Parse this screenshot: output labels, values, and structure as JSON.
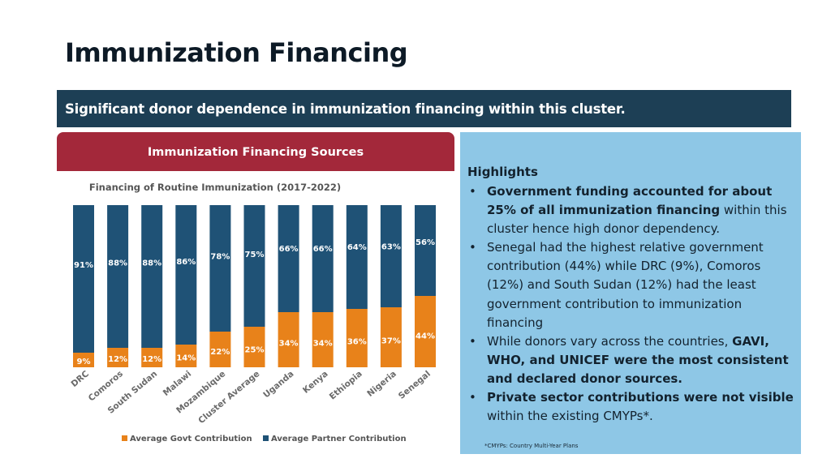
{
  "page": {
    "title": "Immunization Financing",
    "banner": "Significant donor dependence in immunization financing within this cluster."
  },
  "chart_panel": {
    "header": "Immunization Financing Sources"
  },
  "chart_data": {
    "type": "bar",
    "stacked": true,
    "title": "Financing of Routine Immunization (2017-2022)",
    "categories": [
      "DRC",
      "Comoros",
      "South Sudan",
      "Malawi",
      "Mozambique",
      "Cluster Average",
      "Uganda",
      "Kenya",
      "Ethiopia",
      "Nigeria",
      "Senegal"
    ],
    "series": [
      {
        "name": "Average Govt Contribution",
        "color": "#e8821a",
        "values": [
          9,
          12,
          12,
          14,
          22,
          25,
          34,
          34,
          36,
          37,
          44
        ],
        "labels": [
          "9%",
          "12%",
          "12%",
          "14%",
          "22%",
          "25%",
          "34%",
          "34%",
          "36%",
          "37%",
          "44%"
        ]
      },
      {
        "name": "Average Partner Contribution",
        "color": "#1f5276",
        "values": [
          91,
          88,
          88,
          86,
          78,
          75,
          66,
          66,
          64,
          63,
          56
        ],
        "labels": [
          "91%",
          "88%",
          "88%",
          "86%",
          "78%",
          "75%",
          "66%",
          "66%",
          "64%",
          "63%",
          "56%"
        ]
      }
    ],
    "ylim": [
      0,
      100
    ],
    "grid": false,
    "legend": "bottom"
  },
  "highlights": {
    "title": "Highlights",
    "bullets": [
      [
        {
          "t": "Government funding accounted for about 25% of all immunization financing",
          "b": true
        },
        {
          "t": " within this cluster hence  high donor dependency.",
          "b": false
        }
      ],
      [
        {
          "t": "Senegal had the highest relative government contribution (44%) while DRC (9%), Comoros (12%) and South Sudan (12%) had the least government contribution to immunization financing",
          "b": false
        }
      ],
      [
        {
          "t": "While donors vary across the countries, ",
          "b": false
        },
        {
          "t": "GAVI, WHO, and UNICEF were the most consistent and declared donor sources.",
          "b": true
        }
      ],
      [
        {
          "t": "Private sector contributions were not visible",
          "b": true
        },
        {
          "t": " within the existing CMYPs*.",
          "b": false
        }
      ]
    ],
    "footnote": "*CMYPs: Country Multi-Year Plans"
  }
}
